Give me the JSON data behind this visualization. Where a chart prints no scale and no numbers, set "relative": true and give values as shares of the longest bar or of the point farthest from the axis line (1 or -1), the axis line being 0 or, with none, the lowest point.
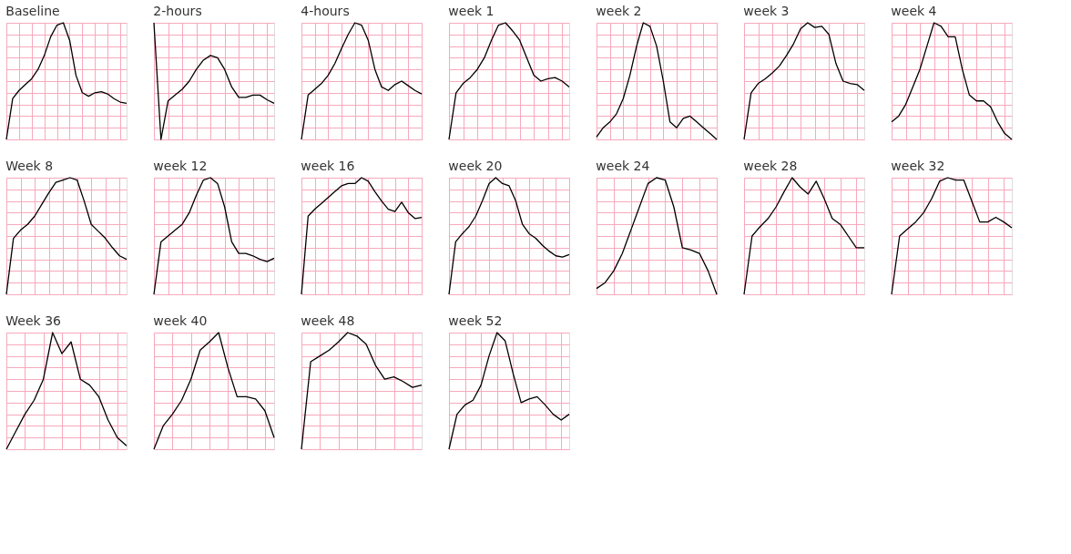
{
  "chart_data": [
    {
      "type": "line",
      "title": "Baseline",
      "relative": true,
      "grid": true,
      "categories": [
        null,
        null,
        null,
        null,
        null,
        null,
        null,
        null,
        null,
        null,
        null,
        null,
        null,
        null,
        null,
        null,
        null,
        null,
        null,
        null
      ],
      "series": [
        {
          "color": "#000000",
          "values": [
            0,
            0.35,
            0.42,
            0.47,
            0.52,
            0.6,
            0.72,
            0.88,
            0.98,
            1.0,
            0.85,
            0.55,
            0.4,
            0.37,
            0.4,
            0.41,
            0.39,
            0.35,
            0.32,
            0.31
          ]
        }
      ]
    },
    {
      "type": "line",
      "title": "2-hours",
      "relative": true,
      "grid": true,
      "categories": [
        null,
        null,
        null,
        null,
        null,
        null,
        null,
        null,
        null,
        null,
        null,
        null,
        null,
        null,
        null,
        null,
        null,
        null
      ],
      "series": [
        {
          "color": "#000000",
          "values": [
            1.0,
            0,
            0.33,
            0.38,
            0.43,
            0.5,
            0.6,
            0.68,
            0.72,
            0.7,
            0.6,
            0.45,
            0.36,
            0.36,
            0.38,
            0.38,
            0.34,
            0.31
          ]
        }
      ]
    },
    {
      "type": "line",
      "title": "4-hours",
      "relative": true,
      "grid": true,
      "categories": [
        null,
        null,
        null,
        null,
        null,
        null,
        null,
        null,
        null,
        null,
        null,
        null,
        null,
        null,
        null,
        null,
        null,
        null,
        null
      ],
      "series": [
        {
          "color": "#000000",
          "values": [
            0,
            0.38,
            0.43,
            0.48,
            0.55,
            0.65,
            0.78,
            0.9,
            1.0,
            0.98,
            0.85,
            0.6,
            0.45,
            0.42,
            0.47,
            0.5,
            0.46,
            0.42,
            0.39
          ]
        }
      ]
    },
    {
      "type": "line",
      "title": "week 1",
      "relative": true,
      "grid": true,
      "categories": [
        null,
        null,
        null,
        null,
        null,
        null,
        null,
        null,
        null,
        null,
        null,
        null,
        null,
        null,
        null,
        null,
        null,
        null
      ],
      "series": [
        {
          "color": "#000000",
          "values": [
            0,
            0.4,
            0.48,
            0.53,
            0.6,
            0.7,
            0.85,
            0.98,
            1.0,
            0.93,
            0.85,
            0.7,
            0.55,
            0.5,
            0.52,
            0.53,
            0.5,
            0.45
          ]
        }
      ]
    },
    {
      "type": "line",
      "title": "week 2",
      "relative": true,
      "grid": true,
      "categories": [
        null,
        null,
        null,
        null,
        null,
        null,
        null,
        null,
        null,
        null,
        null,
        null,
        null,
        null,
        null,
        null,
        null,
        null,
        null
      ],
      "series": [
        {
          "color": "#000000",
          "values": [
            0.02,
            0.1,
            0.15,
            0.22,
            0.35,
            0.55,
            0.8,
            1.0,
            0.97,
            0.8,
            0.5,
            0.15,
            0.1,
            0.18,
            0.2,
            0.15,
            0.1,
            0.05,
            0.0
          ]
        }
      ]
    },
    {
      "type": "line",
      "title": "week 3",
      "relative": true,
      "grid": true,
      "categories": [
        null,
        null,
        null,
        null,
        null,
        null,
        null,
        null,
        null,
        null,
        null,
        null,
        null,
        null,
        null,
        null,
        null,
        null
      ],
      "series": [
        {
          "color": "#000000",
          "values": [
            0,
            0.4,
            0.48,
            0.52,
            0.57,
            0.63,
            0.72,
            0.82,
            0.95,
            1.0,
            0.96,
            0.97,
            0.9,
            0.65,
            0.5,
            0.48,
            0.47,
            0.42
          ]
        }
      ]
    },
    {
      "type": "line",
      "title": "week 4",
      "relative": true,
      "grid": true,
      "categories": [
        null,
        null,
        null,
        null,
        null,
        null,
        null,
        null,
        null,
        null,
        null,
        null,
        null,
        null,
        null,
        null,
        null,
        null
      ],
      "series": [
        {
          "color": "#000000",
          "values": [
            0.15,
            0.2,
            0.3,
            0.45,
            0.6,
            0.8,
            1.0,
            0.97,
            0.88,
            0.88,
            0.6,
            0.38,
            0.33,
            0.33,
            0.28,
            0.15,
            0.05,
            0.0
          ]
        }
      ]
    },
    {
      "type": "line",
      "title": "Week 8",
      "relative": true,
      "grid": true,
      "categories": [
        null,
        null,
        null,
        null,
        null,
        null,
        null,
        null,
        null,
        null,
        null,
        null,
        null,
        null,
        null,
        null,
        null,
        null
      ],
      "series": [
        {
          "color": "#000000",
          "values": [
            0,
            0.48,
            0.55,
            0.6,
            0.67,
            0.77,
            0.87,
            0.96,
            0.98,
            1.0,
            0.98,
            0.8,
            0.6,
            0.54,
            0.48,
            0.4,
            0.33,
            0.3
          ]
        }
      ]
    },
    {
      "type": "line",
      "title": "week 12",
      "relative": true,
      "grid": true,
      "categories": [
        null,
        null,
        null,
        null,
        null,
        null,
        null,
        null,
        null,
        null,
        null,
        null,
        null,
        null,
        null,
        null,
        null,
        null
      ],
      "series": [
        {
          "color": "#000000",
          "values": [
            0,
            0.45,
            0.5,
            0.55,
            0.6,
            0.7,
            0.85,
            0.98,
            1.0,
            0.95,
            0.75,
            0.45,
            0.35,
            0.35,
            0.33,
            0.3,
            0.28,
            0.31
          ]
        }
      ]
    },
    {
      "type": "line",
      "title": "week 16",
      "relative": true,
      "grid": true,
      "categories": [
        null,
        null,
        null,
        null,
        null,
        null,
        null,
        null,
        null,
        null,
        null,
        null,
        null,
        null,
        null,
        null,
        null,
        null,
        null
      ],
      "series": [
        {
          "color": "#000000",
          "values": [
            0,
            0.67,
            0.73,
            0.78,
            0.83,
            0.88,
            0.93,
            0.95,
            0.95,
            1.0,
            0.97,
            0.88,
            0.8,
            0.73,
            0.71,
            0.79,
            0.7,
            0.65,
            0.66
          ]
        }
      ]
    },
    {
      "type": "line",
      "title": "week 20",
      "relative": true,
      "grid": true,
      "categories": [
        null,
        null,
        null,
        null,
        null,
        null,
        null,
        null,
        null,
        null,
        null,
        null,
        null,
        null,
        null,
        null,
        null,
        null,
        null
      ],
      "series": [
        {
          "color": "#000000",
          "values": [
            0,
            0.45,
            0.52,
            0.58,
            0.67,
            0.8,
            0.95,
            1.0,
            0.95,
            0.93,
            0.8,
            0.6,
            0.52,
            0.48,
            0.42,
            0.37,
            0.33,
            0.32,
            0.34
          ]
        }
      ]
    },
    {
      "type": "line",
      "title": "week 24",
      "relative": true,
      "grid": true,
      "categories": [
        null,
        null,
        null,
        null,
        null,
        null,
        null,
        null,
        null,
        null,
        null,
        null,
        null,
        null,
        null
      ],
      "series": [
        {
          "color": "#000000",
          "values": [
            0.05,
            0.1,
            0.2,
            0.35,
            0.55,
            0.75,
            0.95,
            1.0,
            0.98,
            0.75,
            0.4,
            0.38,
            0.35,
            0.2,
            0.0
          ]
        }
      ]
    },
    {
      "type": "line",
      "title": "week 28",
      "relative": true,
      "grid": true,
      "categories": [
        null,
        null,
        null,
        null,
        null,
        null,
        null,
        null,
        null,
        null,
        null,
        null,
        null,
        null,
        null,
        null
      ],
      "series": [
        {
          "color": "#000000",
          "values": [
            0,
            0.5,
            0.58,
            0.65,
            0.75,
            0.88,
            1.0,
            0.92,
            0.86,
            0.97,
            0.82,
            0.65,
            0.6,
            0.5,
            0.4,
            0.4
          ]
        }
      ]
    },
    {
      "type": "line",
      "title": "week 32",
      "relative": true,
      "grid": true,
      "categories": [
        null,
        null,
        null,
        null,
        null,
        null,
        null,
        null,
        null,
        null,
        null,
        null,
        null,
        null,
        null,
        null
      ],
      "series": [
        {
          "color": "#000000",
          "values": [
            0,
            0.5,
            0.56,
            0.62,
            0.7,
            0.82,
            0.97,
            1.0,
            0.98,
            0.98,
            0.8,
            0.62,
            0.62,
            0.66,
            0.62,
            0.57
          ]
        }
      ]
    },
    {
      "type": "line",
      "title": "Week 36",
      "relative": true,
      "grid": true,
      "categories": [
        null,
        null,
        null,
        null,
        null,
        null,
        null,
        null,
        null,
        null,
        null,
        null,
        null,
        null
      ],
      "series": [
        {
          "color": "#000000",
          "values": [
            0,
            0.15,
            0.3,
            0.42,
            0.6,
            1.0,
            0.82,
            0.92,
            0.6,
            0.55,
            0.45,
            0.25,
            0.1,
            0.03
          ]
        }
      ]
    },
    {
      "type": "line",
      "title": "week 40",
      "relative": true,
      "grid": true,
      "categories": [
        null,
        null,
        null,
        null,
        null,
        null,
        null,
        null,
        null,
        null,
        null,
        null,
        null,
        null
      ],
      "series": [
        {
          "color": "#000000",
          "values": [
            0,
            0.2,
            0.3,
            0.42,
            0.6,
            0.85,
            0.92,
            1.0,
            0.7,
            0.45,
            0.45,
            0.43,
            0.33,
            0.1
          ]
        }
      ]
    },
    {
      "type": "line",
      "title": "week 48",
      "relative": true,
      "grid": true,
      "categories": [
        null,
        null,
        null,
        null,
        null,
        null,
        null,
        null,
        null,
        null,
        null,
        null,
        null,
        null
      ],
      "series": [
        {
          "color": "#000000",
          "values": [
            0,
            0.75,
            0.8,
            0.85,
            0.92,
            1.0,
            0.97,
            0.9,
            0.72,
            0.6,
            0.62,
            0.58,
            0.53,
            0.55
          ]
        }
      ]
    },
    {
      "type": "line",
      "title": "week 52",
      "relative": true,
      "grid": true,
      "categories": [
        null,
        null,
        null,
        null,
        null,
        null,
        null,
        null,
        null,
        null,
        null,
        null,
        null,
        null,
        null,
        null
      ],
      "series": [
        {
          "color": "#000000",
          "values": [
            0,
            0.3,
            0.38,
            0.42,
            0.55,
            0.8,
            1.0,
            0.93,
            0.65,
            0.4,
            0.43,
            0.45,
            0.38,
            0.3,
            0.25,
            0.3
          ]
        }
      ]
    }
  ]
}
